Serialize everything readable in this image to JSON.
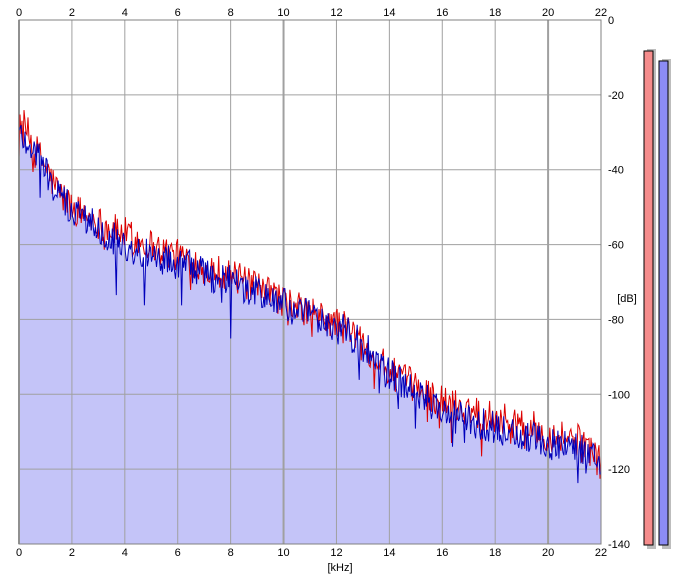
{
  "chart_data": {
    "type": "area",
    "xlabel": "[kHz]",
    "ylabel": "[dB]",
    "xlim": [
      0,
      22
    ],
    "ylim": [
      -140,
      0
    ],
    "x_ticks": [
      "0",
      "2",
      "4",
      "6",
      "8",
      "10",
      "12",
      "14",
      "16",
      "18",
      "20",
      "22"
    ],
    "y_ticks": [
      "0",
      "-20",
      "-40",
      "-60",
      "-80",
      "-100",
      "-120",
      "-140"
    ],
    "grid": true,
    "colors": {
      "left": "#dd0000",
      "right": "#0000bb",
      "fill": "#c4c4f8",
      "grid": "#a0a0a0",
      "frame": "#808080"
    },
    "x": [
      0,
      0.25,
      0.5,
      0.75,
      1,
      1.25,
      1.5,
      2,
      2.5,
      3,
      3.5,
      4,
      4.5,
      5,
      5.5,
      6,
      6.5,
      7,
      7.5,
      8,
      8.5,
      9,
      9.5,
      10,
      10.5,
      11,
      11.5,
      12,
      12.5,
      13,
      13.5,
      14,
      14.5,
      15,
      15.5,
      16,
      16.5,
      17,
      17.5,
      18,
      18.5,
      19,
      19.5,
      20,
      20.5,
      21,
      21.5,
      22
    ],
    "series": [
      {
        "channel": "left",
        "values": [
          -26,
          -29,
          -33,
          -36,
          -39,
          -43,
          -46,
          -50,
          -52,
          -54,
          -56,
          -57,
          -59,
          -60,
          -62,
          -63,
          -64,
          -66,
          -67,
          -68,
          -70,
          -72,
          -73,
          -75,
          -77,
          -78,
          -80,
          -81,
          -83,
          -86,
          -90,
          -94,
          -96,
          -98,
          -100,
          -102,
          -103,
          -104,
          -105,
          -106,
          -107,
          -108,
          -109,
          -111,
          -111,
          -112,
          -113,
          -119
        ]
      },
      {
        "channel": "right",
        "values": [
          -30,
          -32,
          -34,
          -37,
          -40,
          -44,
          -47,
          -51,
          -53,
          -55,
          -58,
          -60,
          -62,
          -63,
          -64,
          -65,
          -66,
          -68,
          -69,
          -70,
          -72,
          -73,
          -74,
          -76,
          -78,
          -79,
          -81,
          -82,
          -84,
          -87,
          -91,
          -95,
          -97,
          -100,
          -102,
          -104,
          -106,
          -107,
          -108,
          -109,
          -110,
          -111,
          -112,
          -113,
          -113,
          -114,
          -115,
          -119
        ]
      }
    ],
    "meters": {
      "left_level": 0.99,
      "right_level": 0.97
    }
  }
}
